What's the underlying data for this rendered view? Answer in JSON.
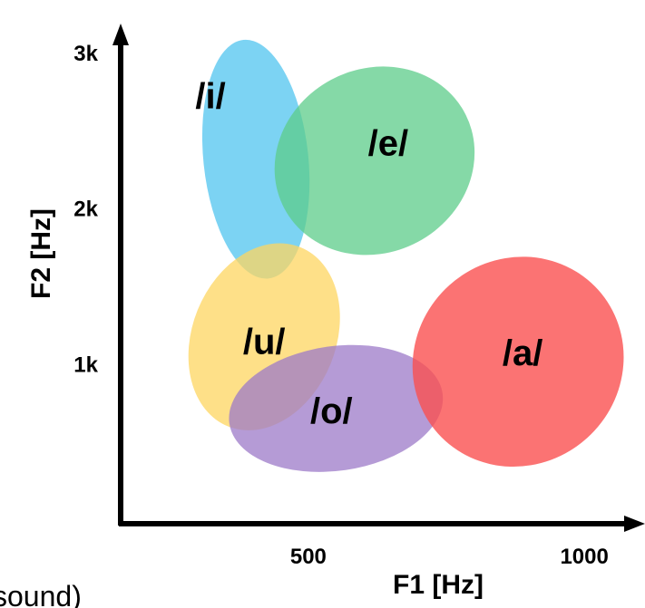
{
  "chart_data": {
    "type": "scatter",
    "title": "",
    "xlabel": "F1 [Hz]",
    "ylabel": "F2 [Hz]",
    "x_ticks": [
      {
        "value": 500,
        "label": "500"
      },
      {
        "value": 1000,
        "label": "1000"
      }
    ],
    "y_ticks": [
      {
        "value": 1000,
        "label": "1k"
      },
      {
        "value": 2000,
        "label": "2k"
      },
      {
        "value": 3000,
        "label": "3k"
      }
    ],
    "xlim": [
      160,
      1100
    ],
    "ylim": [
      -20,
      3150
    ],
    "grid": false,
    "legend": "none",
    "regions": [
      {
        "label": "/i/",
        "f1_center": 405,
        "f2_center": 2320,
        "f1_radius": 95,
        "f2_radius": 770,
        "color": "#5bc8f0",
        "opacity": 0.8
      },
      {
        "label": "/e/",
        "f1_center": 620,
        "f2_center": 2310,
        "f1_radius": 185,
        "f2_radius": 590,
        "color": "#5ccc8a",
        "opacity": 0.75
      },
      {
        "label": "/u/",
        "f1_center": 420,
        "f2_center": 1180,
        "f1_radius": 130,
        "f2_radius": 620,
        "color": "#fdd660",
        "opacity": 0.75
      },
      {
        "label": "/o/",
        "f1_center": 550,
        "f2_center": 720,
        "f1_radius": 195,
        "f2_radius": 400,
        "color": "#9c7ac8",
        "opacity": 0.75
      },
      {
        "label": "/a/",
        "f1_center": 880,
        "f2_center": 1020,
        "f1_radius": 195,
        "f2_radius": 660,
        "color": "#fa5050",
        "opacity": 0.8
      }
    ]
  },
  "footer": {
    "cut_text": "sound)"
  }
}
